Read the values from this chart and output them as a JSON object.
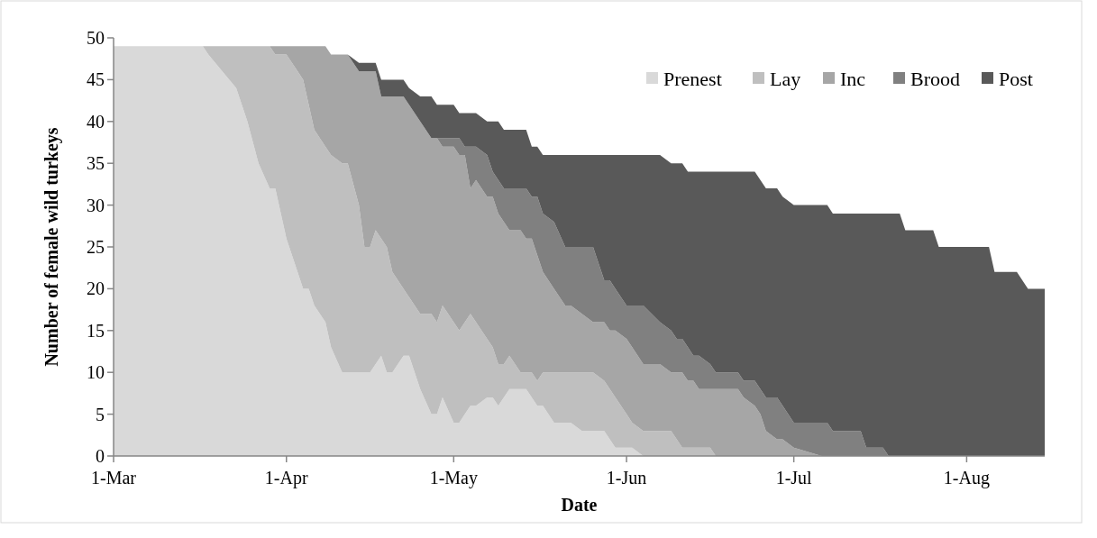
{
  "chart_data": {
    "type": "area",
    "stacked": true,
    "xlabel": "Date",
    "ylabel": "Number of female wild turkeys",
    "legend": "top right",
    "x": [
      "--03-01",
      "--03-17",
      "--03-18",
      "--03-23",
      "--03-25",
      "--03-27",
      "--03-29",
      "--03-30",
      "--04-01",
      "--04-03",
      "--04-04",
      "--04-05",
      "--04-06",
      "--04-08",
      "--04-09",
      "--04-11",
      "--04-12",
      "--04-14",
      "--04-15",
      "--04-16",
      "--04-17",
      "--04-18",
      "--04-19",
      "--04-20",
      "--04-22",
      "--04-23",
      "--04-25",
      "--04-27",
      "--04-28",
      "--04-29",
      "--05-01",
      "--05-02",
      "--05-03",
      "--05-04",
      "--05-05",
      "--05-07",
      "--05-08",
      "--05-09",
      "--05-10",
      "--05-11",
      "--05-13",
      "--05-14",
      "--05-15",
      "--05-16",
      "--05-17",
      "--05-19",
      "--05-21",
      "--05-22",
      "--05-24",
      "--05-26",
      "--05-28",
      "--05-29",
      "--05-30",
      "--06-01",
      "--06-02",
      "--06-04",
      "--06-07",
      "--06-09",
      "--06-10",
      "--06-11",
      "--06-12",
      "--06-13",
      "--06-14",
      "--06-16",
      "--06-17",
      "--06-21",
      "--06-22",
      "--06-24",
      "--06-25",
      "--06-26",
      "--06-28",
      "--06-29",
      "--07-01",
      "--07-06",
      "--07-07",
      "--07-08",
      "--07-13",
      "--07-14",
      "--07-17",
      "--07-18",
      "--07-20",
      "--07-21",
      "--07-26",
      "--07-27",
      "--08-05",
      "--08-06",
      "--08-10",
      "--08-12",
      "--08-15"
    ],
    "series": [
      {
        "name": "Prenest",
        "color": "#d9d9d9",
        "values": [
          49,
          49,
          48,
          44,
          40,
          35,
          32,
          32,
          26,
          22,
          20,
          20,
          18,
          16,
          13,
          10,
          10,
          10,
          10,
          10,
          11,
          12,
          10,
          10,
          12,
          12,
          8,
          5,
          5,
          7,
          4,
          4,
          5,
          6,
          6,
          7,
          7,
          6,
          7,
          8,
          8,
          8,
          7,
          6,
          6,
          4,
          4,
          4,
          3,
          3,
          3,
          2,
          1,
          1,
          1,
          0,
          0,
          0,
          0,
          0,
          0,
          0,
          0,
          0,
          0,
          0,
          0,
          0,
          0,
          0,
          0,
          0,
          0,
          0,
          0,
          0,
          0,
          0,
          0,
          0,
          0,
          0,
          0,
          0,
          0,
          0,
          0,
          0,
          0
        ]
      },
      {
        "name": "Lay",
        "color": "#bfbfbf",
        "values": [
          null,
          0,
          1,
          5,
          9,
          14,
          17,
          16,
          22,
          24,
          25,
          22,
          21,
          21,
          23,
          25,
          25,
          20,
          15,
          15,
          16,
          14,
          15,
          12,
          8,
          7,
          9,
          12,
          11,
          11,
          12,
          11,
          11,
          11,
          10,
          7,
          6,
          5,
          4,
          4,
          2,
          2,
          3,
          3,
          4,
          6,
          6,
          6,
          7,
          7,
          6,
          6,
          6,
          4,
          3,
          3,
          3,
          3,
          2,
          1,
          1,
          1,
          1,
          1,
          0,
          null,
          null,
          null,
          null,
          null,
          null,
          null,
          null,
          null,
          null,
          null,
          null,
          null,
          null,
          null,
          null,
          null,
          null,
          null,
          null,
          null,
          null,
          null,
          null
        ]
      },
      {
        "name": "Inc",
        "color": "#a6a6a6",
        "values": [
          null,
          null,
          null,
          null,
          null,
          null,
          0,
          1,
          1,
          3,
          4,
          7,
          10,
          12,
          12,
          13,
          13,
          16,
          21,
          21,
          19,
          17,
          18,
          21,
          23,
          23,
          23,
          21,
          22,
          19,
          21,
          21,
          20,
          15,
          17,
          17,
          18,
          18,
          17,
          15,
          17,
          16,
          16,
          15,
          12,
          10,
          8,
          8,
          7,
          6,
          7,
          7,
          8,
          9,
          9,
          8,
          8,
          7,
          8,
          9,
          8,
          8,
          7,
          7,
          8,
          8,
          7,
          6,
          5,
          3,
          2,
          2,
          1,
          0,
          null,
          null,
          null,
          null,
          null,
          null,
          null,
          null,
          null,
          null,
          null,
          null,
          null,
          null,
          null
        ]
      },
      {
        "name": "Brood",
        "color": "#808080",
        "values": [
          null,
          null,
          null,
          null,
          null,
          null,
          null,
          null,
          null,
          null,
          null,
          null,
          null,
          null,
          null,
          null,
          null,
          null,
          null,
          null,
          null,
          null,
          null,
          null,
          null,
          null,
          null,
          null,
          0,
          1,
          1,
          2,
          1,
          5,
          4,
          5,
          3,
          4,
          4,
          5,
          5,
          6,
          5,
          7,
          7,
          8,
          7,
          7,
          8,
          9,
          5,
          6,
          5,
          4,
          5,
          7,
          5,
          5,
          4,
          4,
          4,
          3,
          4,
          3,
          2,
          2,
          2,
          3,
          3,
          4,
          5,
          4,
          3,
          4,
          4,
          3,
          3,
          1,
          1,
          0,
          null,
          null,
          null,
          null,
          null,
          null,
          null,
          null,
          null
        ]
      },
      {
        "name": "Post",
        "color": "#595959",
        "values": [
          null,
          null,
          null,
          null,
          null,
          null,
          null,
          null,
          null,
          null,
          null,
          null,
          null,
          null,
          null,
          null,
          0,
          1,
          1,
          1,
          1,
          2,
          2,
          2,
          2,
          2,
          3,
          5,
          4,
          4,
          4,
          3,
          4,
          4,
          4,
          4,
          6,
          7,
          7,
          7,
          7,
          7,
          6,
          6,
          7,
          8,
          11,
          11,
          11,
          11,
          15,
          15,
          16,
          18,
          18,
          18,
          20,
          20,
          21,
          21,
          21,
          22,
          22,
          23,
          24,
          24,
          25,
          25,
          25,
          25,
          25,
          25,
          26,
          26,
          26,
          26,
          26,
          28,
          28,
          29,
          29,
          27,
          27,
          25,
          25,
          22,
          22,
          20,
          20
        ]
      }
    ],
    "xlim": [
      "--03-01",
      "--08-15"
    ],
    "xticks": [
      {
        "value": "--03-01",
        "label": "1-Mar"
      },
      {
        "value": "--04-01",
        "label": "1-Apr"
      },
      {
        "value": "--05-01",
        "label": "1-May"
      },
      {
        "value": "--06-01",
        "label": "1-Jun"
      },
      {
        "value": "--07-01",
        "label": "1-Jul"
      },
      {
        "value": "--08-01",
        "label": "1-Aug"
      }
    ],
    "ylim": [
      0,
      50
    ],
    "yticks": [
      0,
      5,
      10,
      15,
      20,
      25,
      30,
      35,
      40,
      45,
      50
    ]
  }
}
